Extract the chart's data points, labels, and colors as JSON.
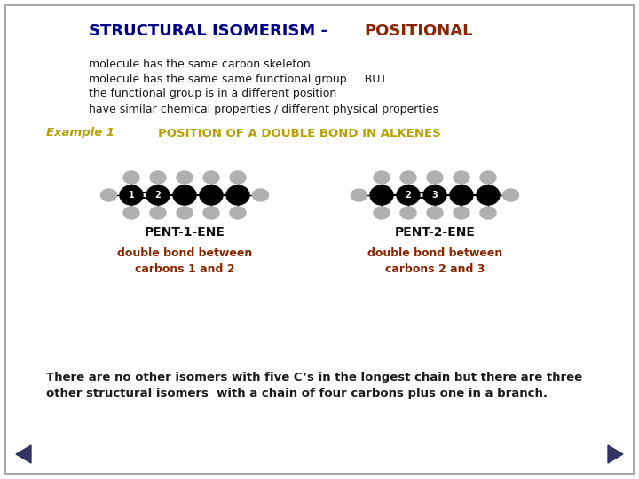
{
  "title_part1": "STRUCTURAL ISOMERISM - ",
  "title_part2": "POSITIONAL",
  "title_color1": "#00008B",
  "title_color2": "#8B2500",
  "body_text": [
    "molecule has the same carbon skeleton",
    "molecule has the same same functional group...  BUT",
    "the functional group is in a different position",
    "have similar chemical properties / different physical properties"
  ],
  "body_color": "#1a1a1a",
  "example_label": "Example 1",
  "example_label_color": "#b8a000",
  "example_title": "POSITION OF A DOUBLE BOND IN ALKENES",
  "example_title_color": "#b8a000",
  "mol1_name": "PENT-1-ENE",
  "mol1_sub": "double bond between\ncarbons 1 and 2",
  "mol2_name": "PENT-2-ENE",
  "mol2_sub": "double bond between\ncarbons 2 and 3",
  "mol_name_color": "#111111",
  "mol_sub_color": "#8B2500",
  "bottom_text1": "There are no other isomers with five C’s in the longest chain but there are three",
  "bottom_text2": "other structural isomers  with a chain of four carbons plus one in a branch.",
  "bg_color": "#ffffff",
  "border_color": "#aaaaaa",
  "nav_arrow_color": "#333366"
}
